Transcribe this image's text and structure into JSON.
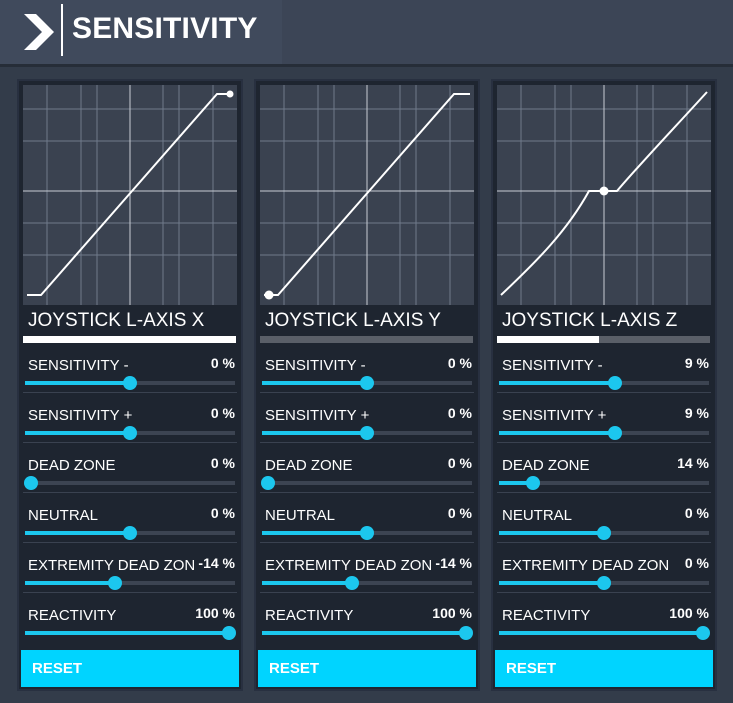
{
  "header": {
    "title": "SENSITIVITY"
  },
  "accent_color": "#1cc7ee",
  "reset_color": "#00d4ff",
  "panels": [
    {
      "axis_name": "JOYSTICK L-AXIS X",
      "axis_position": 1.0,
      "curve_marker": "top-right",
      "settings": [
        {
          "label": "SENSITIVITY -",
          "value": "0 %",
          "slider": 0.5
        },
        {
          "label": "SENSITIVITY +",
          "value": "0 %",
          "slider": 0.5
        },
        {
          "label": "DEAD ZONE",
          "value": "0 %",
          "slider": 0.0
        },
        {
          "label": "NEUTRAL",
          "value": "0 %",
          "slider": 0.5
        },
        {
          "label": "EXTREMITY DEAD ZONE",
          "value": "-14 %",
          "slider": 0.43
        },
        {
          "label": "REACTIVITY",
          "value": "100 %",
          "slider": 1.0
        }
      ],
      "reset_label": "RESET"
    },
    {
      "axis_name": "JOYSTICK L-AXIS Y",
      "axis_position": 0.0,
      "curve_marker": "bottom-left",
      "settings": [
        {
          "label": "SENSITIVITY -",
          "value": "0 %",
          "slider": 0.5
        },
        {
          "label": "SENSITIVITY +",
          "value": "0 %",
          "slider": 0.5
        },
        {
          "label": "DEAD ZONE",
          "value": "0 %",
          "slider": 0.0
        },
        {
          "label": "NEUTRAL",
          "value": "0 %",
          "slider": 0.5
        },
        {
          "label": "EXTREMITY DEAD ZONE",
          "value": "-14 %",
          "slider": 0.43
        },
        {
          "label": "REACTIVITY",
          "value": "100 %",
          "slider": 1.0
        }
      ],
      "reset_label": "RESET"
    },
    {
      "axis_name": "JOYSTICK L-AXIS Z",
      "axis_position": 0.5,
      "curve_marker": "center",
      "settings": [
        {
          "label": "SENSITIVITY -",
          "value": "9 %",
          "slider": 0.55
        },
        {
          "label": "SENSITIVITY +",
          "value": "9 %",
          "slider": 0.55
        },
        {
          "label": "DEAD ZONE",
          "value": "14 %",
          "slider": 0.16
        },
        {
          "label": "NEUTRAL",
          "value": "0 %",
          "slider": 0.5
        },
        {
          "label": "EXTREMITY DEAD ZONE",
          "value": "0 %",
          "slider": 0.5
        },
        {
          "label": "REACTIVITY",
          "value": "100 %",
          "slider": 1.0
        }
      ],
      "reset_label": "RESET"
    }
  ]
}
